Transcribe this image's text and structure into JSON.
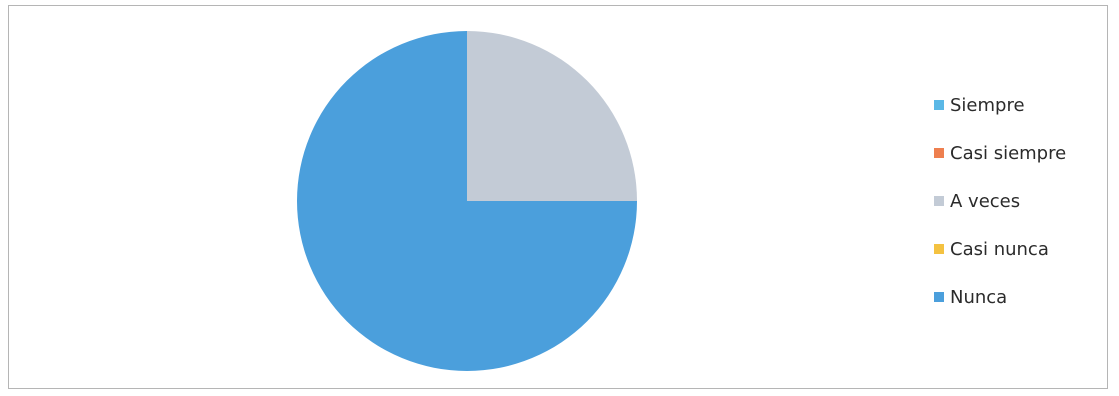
{
  "chart_data": {
    "type": "pie",
    "title": "",
    "categories": [
      "Siempre",
      "Casi siempre",
      "A veces",
      "Casi nunca",
      "Nunca"
    ],
    "values": [
      0,
      0,
      25,
      0,
      75
    ],
    "colors": [
      "#5bb8e6",
      "#ee7f4f",
      "#c3cbd6",
      "#f4c241",
      "#4b9fdc"
    ],
    "start_angle_deg": 0,
    "direction": "clockwise",
    "legend_position": "right"
  }
}
